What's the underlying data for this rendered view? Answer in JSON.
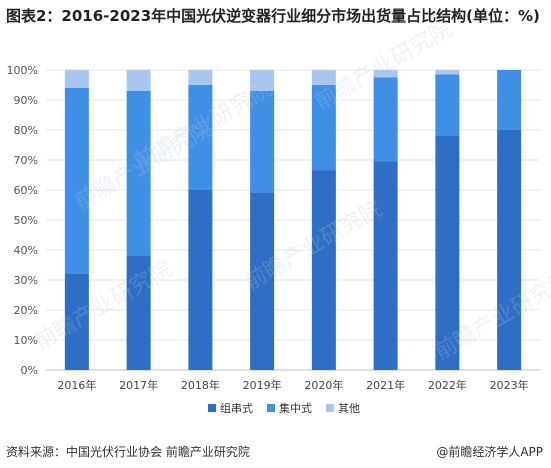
{
  "title": "图表2：2016-2023年中国光伏逆变器行业细分市场出货量占比结构(单位：%)",
  "watermark": "前瞻产业研究院",
  "chart_data": {
    "type": "bar",
    "stacked": true,
    "categories": [
      "2016年",
      "2017年",
      "2018年",
      "2019年",
      "2020年",
      "2021年",
      "2022年",
      "2023年"
    ],
    "series": [
      {
        "name": "组串式",
        "color": "#2e6ec4",
        "values": [
          32,
          38,
          60,
          59,
          66.5,
          69.5,
          78,
          80
        ]
      },
      {
        "name": "集中式",
        "color": "#3f8fe6",
        "values": [
          62,
          55,
          35,
          34,
          28.5,
          28,
          20.5,
          20
        ]
      },
      {
        "name": "其他",
        "color": "#a9c6f0",
        "values": [
          6,
          7,
          5,
          7,
          5,
          2.5,
          1.5,
          0
        ]
      }
    ],
    "y_ticks": [
      "0%",
      "10%",
      "20%",
      "30%",
      "40%",
      "50%",
      "60%",
      "70%",
      "80%",
      "90%",
      "100%"
    ],
    "ylim": [
      0,
      100
    ],
    "grid": true,
    "legend_position": "bottom"
  },
  "footer": {
    "source": "资料来源：中国光伏行业协会 前瞻产业研究院",
    "brand": "@前瞻经济学人APP"
  }
}
